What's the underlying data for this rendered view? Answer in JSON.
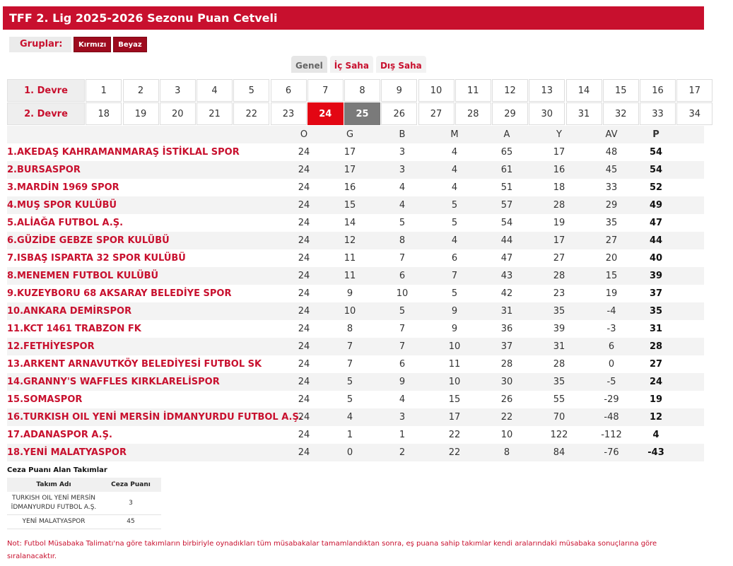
{
  "title": "TFF 2. Lig 2025-2026 Sezonu Puan Cetveli",
  "groups": {
    "label": "Gruplar:",
    "buttons": [
      "Kırmızı",
      "Beyaz"
    ]
  },
  "view_tabs": [
    "Genel",
    "İç Saha",
    "Dış Saha"
  ],
  "weeks": {
    "first_half_label": "1. Devre",
    "second_half_label": "2. Devre",
    "first_half": [
      "1",
      "2",
      "3",
      "4",
      "5",
      "6",
      "7",
      "8",
      "9",
      "10",
      "11",
      "12",
      "13",
      "14",
      "15",
      "16",
      "17"
    ],
    "second_half": [
      "18",
      "19",
      "20",
      "21",
      "22",
      "23",
      "24",
      "25",
      "26",
      "27",
      "28",
      "29",
      "30",
      "31",
      "32",
      "33",
      "34"
    ],
    "current_week": "24",
    "next_week": "25"
  },
  "standings": {
    "headers": [
      "O",
      "G",
      "B",
      "M",
      "A",
      "Y",
      "AV",
      "P"
    ],
    "rows": [
      {
        "team": "1.AKEDAŞ KAHRAMANMARAŞ İSTİKLAL SPOR",
        "stats": [
          "24",
          "17",
          "3",
          "4",
          "65",
          "17",
          "48",
          "54"
        ]
      },
      {
        "team": "2.BURSASPOR",
        "stats": [
          "24",
          "17",
          "3",
          "4",
          "61",
          "16",
          "45",
          "54"
        ]
      },
      {
        "team": "3.MARDİN 1969 SPOR",
        "stats": [
          "24",
          "16",
          "4",
          "4",
          "51",
          "18",
          "33",
          "52"
        ]
      },
      {
        "team": "4.MUŞ SPOR KULÜBÜ",
        "stats": [
          "24",
          "15",
          "4",
          "5",
          "57",
          "28",
          "29",
          "49"
        ]
      },
      {
        "team": "5.ALİAĞA FUTBOL A.Ş.",
        "stats": [
          "24",
          "14",
          "5",
          "5",
          "54",
          "19",
          "35",
          "47"
        ]
      },
      {
        "team": "6.GÜZİDE GEBZE SPOR KULÜBÜ",
        "stats": [
          "24",
          "12",
          "8",
          "4",
          "44",
          "17",
          "27",
          "44"
        ]
      },
      {
        "team": "7.ISBAŞ ISPARTA 32 SPOR KULÜBÜ",
        "stats": [
          "24",
          "11",
          "7",
          "6",
          "47",
          "27",
          "20",
          "40"
        ]
      },
      {
        "team": "8.MENEMEN FUTBOL KULÜBÜ",
        "stats": [
          "24",
          "11",
          "6",
          "7",
          "43",
          "28",
          "15",
          "39"
        ]
      },
      {
        "team": "9.KUZEYBORU 68 AKSARAY BELEDİYE SPOR",
        "stats": [
          "24",
          "9",
          "10",
          "5",
          "42",
          "23",
          "19",
          "37"
        ]
      },
      {
        "team": "10.ANKARA DEMİRSPOR",
        "stats": [
          "24",
          "10",
          "5",
          "9",
          "31",
          "35",
          "-4",
          "35"
        ]
      },
      {
        "team": "11.KCT 1461 TRABZON FK",
        "stats": [
          "24",
          "8",
          "7",
          "9",
          "36",
          "39",
          "-3",
          "31"
        ]
      },
      {
        "team": "12.FETHİYESPOR",
        "stats": [
          "24",
          "7",
          "7",
          "10",
          "37",
          "31",
          "6",
          "28"
        ]
      },
      {
        "team": "13.ARKENT ARNAVUTKÖY BELEDİYESİ FUTBOL SK",
        "stats": [
          "24",
          "7",
          "6",
          "11",
          "28",
          "28",
          "0",
          "27"
        ]
      },
      {
        "team": "14.GRANNY'S WAFFLES KIRKLARELİSPOR",
        "stats": [
          "24",
          "5",
          "9",
          "10",
          "30",
          "35",
          "-5",
          "24"
        ]
      },
      {
        "team": "15.SOMASPOR",
        "stats": [
          "24",
          "5",
          "4",
          "15",
          "26",
          "55",
          "-29",
          "19"
        ]
      },
      {
        "team": "16.TURKISH OIL YENİ MERSİN İDMANYURDU FUTBOL A.Ş.",
        "stats": [
          "24",
          "4",
          "3",
          "17",
          "22",
          "70",
          "-48",
          "12"
        ]
      },
      {
        "team": "17.ADANASPOR A.Ş.",
        "stats": [
          "24",
          "1",
          "1",
          "22",
          "10",
          "122",
          "-112",
          "4"
        ]
      },
      {
        "team": "18.YENİ MALATYASPOR",
        "stats": [
          "24",
          "0",
          "2",
          "22",
          "8",
          "84",
          "-76",
          "-43"
        ]
      }
    ]
  },
  "penalties": {
    "title": "Ceza Puanı Alan Takımlar",
    "headers": [
      "Takım Adı",
      "Ceza Puanı"
    ],
    "rows": [
      {
        "team": "TURKISH OIL YENİ MERSİN İDMANYURDU FUTBOL A.Ş.",
        "points": "3"
      },
      {
        "team": "YENİ MALATYASPOR",
        "points": "45"
      }
    ]
  },
  "note": "Not: Futbol Müsabaka Talimatı'na göre takımların birbiriyle oynadıkları tüm müsabakalar tamamlandıktan sonra, eş puana sahip takımlar kendi aralarındaki müsabaka sonuçlarına göre sıralanacaktır."
}
